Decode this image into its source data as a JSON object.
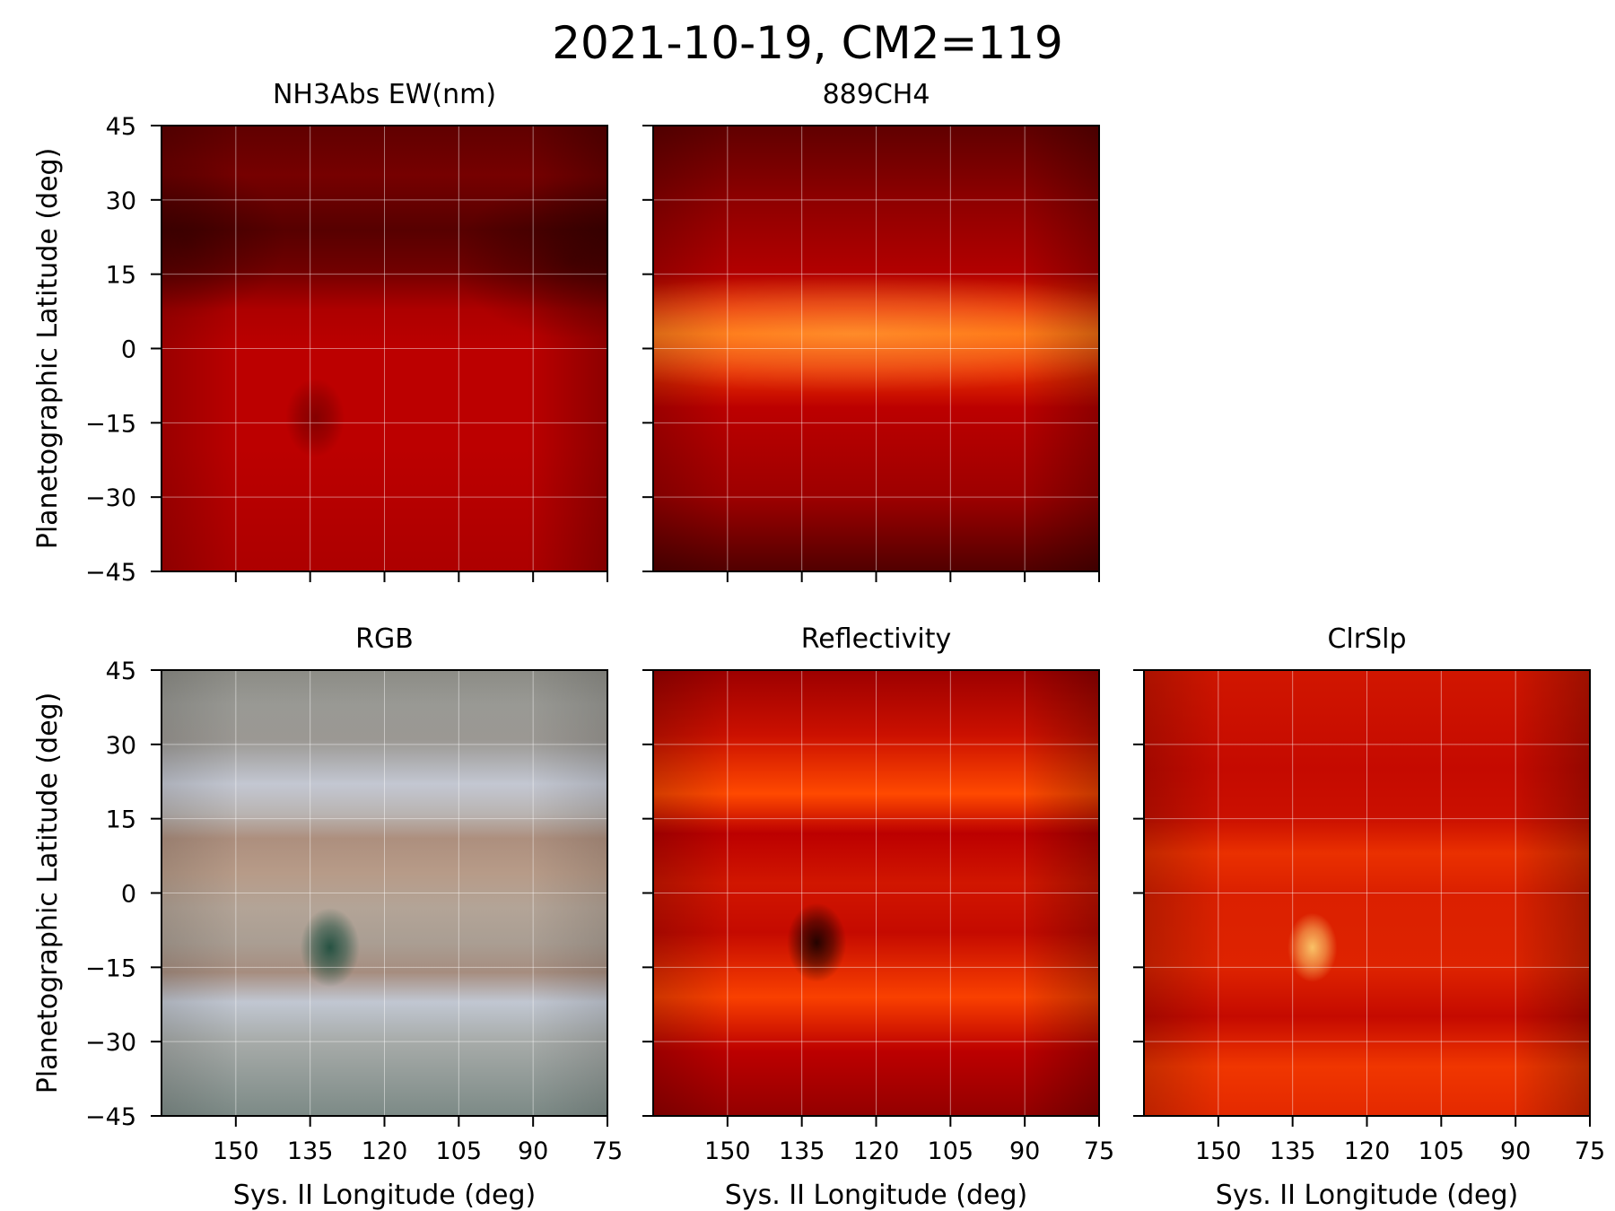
{
  "figure": {
    "title": "2021-10-19, CM2=119"
  },
  "chart_data": [
    {
      "type": "heatmap",
      "title": "NH3Abs EW(nm)",
      "xlabel": "",
      "ylabel": "Planetographic Latitude (deg)",
      "xlim": [
        165,
        75
      ],
      "ylim": [
        -45,
        45
      ],
      "xticks": [
        150,
        135,
        120,
        105,
        90,
        75
      ],
      "yticks": [
        45,
        30,
        15,
        0,
        -15,
        -30,
        -45
      ],
      "show_xtick_labels": false,
      "show_ytick_labels": true,
      "grid": true,
      "colormap": "red",
      "bands": [
        {
          "lat": 45,
          "v": 0.25
        },
        {
          "lat": 35,
          "v": 0.32
        },
        {
          "lat": 24,
          "v": 0.22
        },
        {
          "lat": 16,
          "v": 0.3
        },
        {
          "lat": 8,
          "v": 0.5
        },
        {
          "lat": 0,
          "v": 0.55
        },
        {
          "lat": -20,
          "v": 0.55
        },
        {
          "lat": -45,
          "v": 0.5
        }
      ],
      "features": [
        {
          "label": "dark spot",
          "lon": 134,
          "lat": -14,
          "rlon": 3,
          "rlat": 4,
          "dv": -0.2
        },
        {
          "label": "dark patch",
          "lon": 82,
          "lat": 18,
          "rlon": 12,
          "rlat": 8,
          "dv": -0.2
        },
        {
          "label": "dark patch",
          "lon": 160,
          "lat": 22,
          "rlon": 10,
          "rlat": 8,
          "dv": -0.15
        }
      ]
    },
    {
      "type": "heatmap",
      "title": "889CH4",
      "xlabel": "",
      "ylabel": "",
      "xlim": [
        165,
        75
      ],
      "ylim": [
        -45,
        45
      ],
      "xticks": [
        150,
        135,
        120,
        105,
        90,
        75
      ],
      "yticks": [
        45,
        30,
        15,
        0,
        -15,
        -30,
        -45
      ],
      "show_xtick_labels": false,
      "show_ytick_labels": false,
      "grid": true,
      "colormap": "red",
      "bands": [
        {
          "lat": 45,
          "v": 0.25
        },
        {
          "lat": 30,
          "v": 0.4
        },
        {
          "lat": 15,
          "v": 0.52
        },
        {
          "lat": 8,
          "v": 0.7
        },
        {
          "lat": 3,
          "v": 0.85
        },
        {
          "lat": -4,
          "v": 0.7
        },
        {
          "lat": -12,
          "v": 0.55
        },
        {
          "lat": -30,
          "v": 0.45
        },
        {
          "lat": -45,
          "v": 0.2
        }
      ],
      "features": [
        {
          "label": "bright equatorial zone",
          "lon": 125,
          "lat": 3,
          "rlon": 35,
          "rlat": 6,
          "dv": 0.12
        }
      ]
    },
    {
      "type": "heatmap",
      "title": "RGB",
      "xlabel": "Sys. II Longitude (deg)",
      "ylabel": "Planetographic Latitude (deg)",
      "xlim": [
        165,
        75
      ],
      "ylim": [
        -45,
        45
      ],
      "xticks": [
        150,
        135,
        120,
        105,
        90,
        75
      ],
      "yticks": [
        45,
        30,
        15,
        0,
        -15,
        -30,
        -45
      ],
      "show_xtick_labels": true,
      "show_ytick_labels": true,
      "grid": true,
      "colormap": "rgb",
      "bands": [
        {
          "lat": 45,
          "c": "#8c8c86"
        },
        {
          "lat": 38,
          "c": "#999994"
        },
        {
          "lat": 31,
          "c": "#9b9893"
        },
        {
          "lat": 22,
          "c": "#c3c7d2"
        },
        {
          "lat": 16,
          "c": "#b9b4b2"
        },
        {
          "lat": 11,
          "c": "#ad8f7e"
        },
        {
          "lat": 4,
          "c": "#b79b88"
        },
        {
          "lat": -3,
          "c": "#b3a497"
        },
        {
          "lat": -10,
          "c": "#aa9e93"
        },
        {
          "lat": -16,
          "c": "#a68d7f"
        },
        {
          "lat": -22,
          "c": "#c1c7d2"
        },
        {
          "lat": -30,
          "c": "#a7aba9"
        },
        {
          "lat": -45,
          "c": "#7c8a86"
        }
      ],
      "features": [
        {
          "label": "dark spot",
          "lon": 131,
          "lat": -11,
          "rlon": 3,
          "rlat": 4,
          "c": "#1f4e3e"
        }
      ]
    },
    {
      "type": "heatmap",
      "title": "Reflectivity",
      "xlabel": "Sys. II Longitude (deg)",
      "ylabel": "",
      "xlim": [
        165,
        75
      ],
      "ylim": [
        -45,
        45
      ],
      "xticks": [
        150,
        135,
        120,
        105,
        90,
        75
      ],
      "yticks": [
        45,
        30,
        15,
        0,
        -15,
        -30,
        -45
      ],
      "show_xtick_labels": true,
      "show_ytick_labels": false,
      "grid": true,
      "colormap": "red",
      "bands": [
        {
          "lat": 45,
          "v": 0.45
        },
        {
          "lat": 32,
          "v": 0.6
        },
        {
          "lat": 20,
          "v": 0.78
        },
        {
          "lat": 12,
          "v": 0.55
        },
        {
          "lat": 2,
          "v": 0.62
        },
        {
          "lat": -8,
          "v": 0.58
        },
        {
          "lat": -21,
          "v": 0.75
        },
        {
          "lat": -32,
          "v": 0.55
        },
        {
          "lat": -45,
          "v": 0.42
        }
      ],
      "features": [
        {
          "label": "dark spot",
          "lon": 132,
          "lat": -10,
          "rlon": 3,
          "rlat": 4,
          "dv": -0.55
        }
      ]
    },
    {
      "type": "heatmap",
      "title": "ClrSlp",
      "xlabel": "Sys. II Longitude (deg)",
      "ylabel": "",
      "xlim": [
        165,
        75
      ],
      "ylim": [
        -45,
        45
      ],
      "xticks": [
        150,
        135,
        120,
        105,
        90,
        75
      ],
      "yticks": [
        45,
        30,
        15,
        0,
        -15,
        -30,
        -45
      ],
      "show_xtick_labels": true,
      "show_ytick_labels": false,
      "grid": true,
      "colormap": "red",
      "bands": [
        {
          "lat": 45,
          "v": 0.62
        },
        {
          "lat": 25,
          "v": 0.58
        },
        {
          "lat": 15,
          "v": 0.6
        },
        {
          "lat": 8,
          "v": 0.7
        },
        {
          "lat": 0,
          "v": 0.65
        },
        {
          "lat": -15,
          "v": 0.66
        },
        {
          "lat": -25,
          "v": 0.58
        },
        {
          "lat": -35,
          "v": 0.72
        },
        {
          "lat": -45,
          "v": 0.68
        }
      ],
      "features": [
        {
          "label": "bright spot",
          "lon": 131,
          "lat": -11,
          "rlon": 2.5,
          "rlat": 3.5,
          "dv": 0.3
        }
      ]
    }
  ]
}
